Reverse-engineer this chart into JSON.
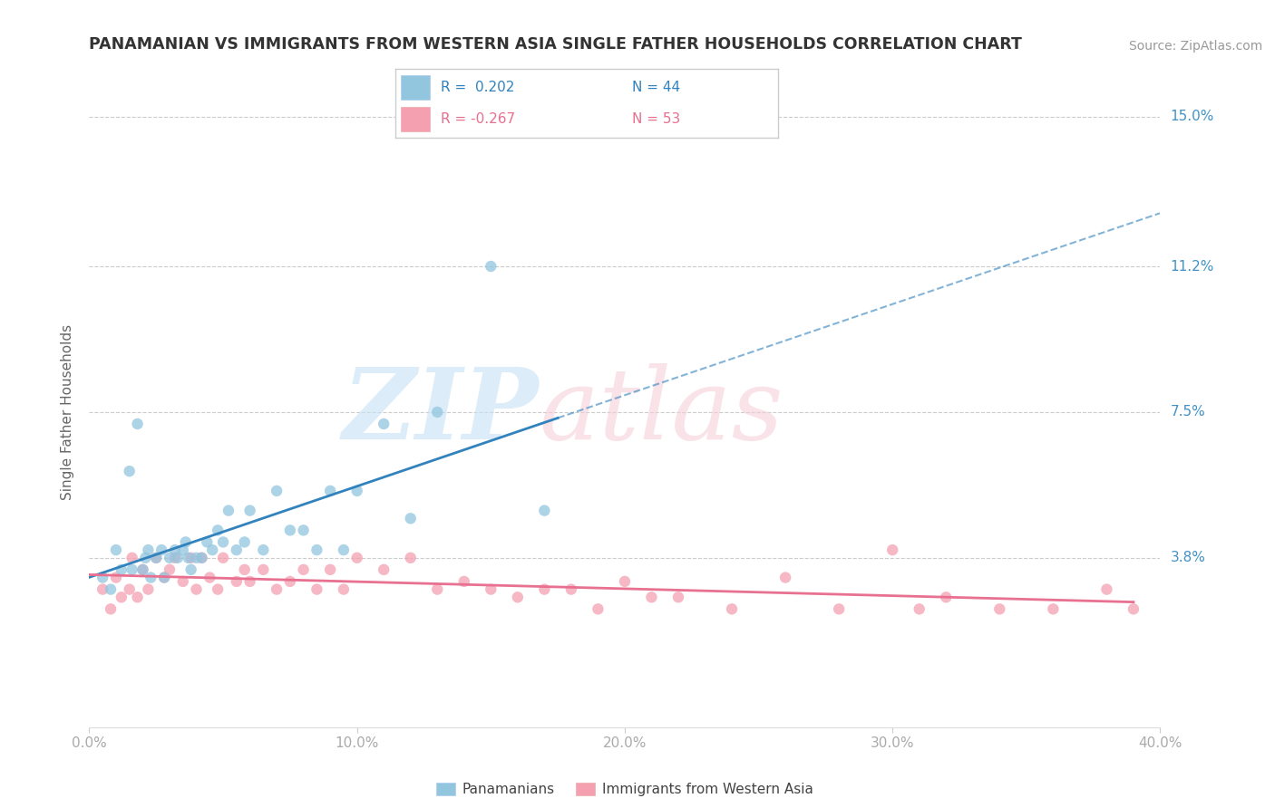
{
  "title": "PANAMANIAN VS IMMIGRANTS FROM WESTERN ASIA SINGLE FATHER HOUSEHOLDS CORRELATION CHART",
  "source": "Source: ZipAtlas.com",
  "ylabel": "Single Father Households",
  "xlim": [
    0.0,
    0.4
  ],
  "ylim": [
    -0.005,
    0.155
  ],
  "ytick_positions": [
    0.038,
    0.075,
    0.112,
    0.15
  ],
  "ytick_labels": [
    "3.8%",
    "7.5%",
    "11.2%",
    "15.0%"
  ],
  "xtick_positions": [
    0.0,
    0.1,
    0.2,
    0.3,
    0.4
  ],
  "xtick_labels": [
    "0.0%",
    "10.0%",
    "20.0%",
    "30.0%",
    "40.0%"
  ],
  "legend_r1": "R =  0.202",
  "legend_n1": "N = 44",
  "legend_r2": "R = -0.267",
  "legend_n2": "N = 53",
  "color_blue": "#92c5de",
  "color_pink": "#f4a0b0",
  "color_trendline_blue": "#3182bd",
  "color_trendline_pink": "#e87090",
  "color_ytick": "#4292c6",
  "color_xtick": "#aaaaaa",
  "blue_scatter_x": [
    0.005,
    0.008,
    0.01,
    0.012,
    0.015,
    0.016,
    0.018,
    0.02,
    0.021,
    0.022,
    0.023,
    0.025,
    0.027,
    0.028,
    0.03,
    0.032,
    0.033,
    0.035,
    0.036,
    0.037,
    0.038,
    0.04,
    0.042,
    0.044,
    0.046,
    0.048,
    0.05,
    0.052,
    0.055,
    0.058,
    0.06,
    0.065,
    0.07,
    0.075,
    0.08,
    0.085,
    0.09,
    0.095,
    0.1,
    0.11,
    0.12,
    0.13,
    0.15,
    0.17
  ],
  "blue_scatter_y": [
    0.033,
    0.03,
    0.04,
    0.035,
    0.06,
    0.035,
    0.072,
    0.035,
    0.038,
    0.04,
    0.033,
    0.038,
    0.04,
    0.033,
    0.038,
    0.04,
    0.038,
    0.04,
    0.042,
    0.038,
    0.035,
    0.038,
    0.038,
    0.042,
    0.04,
    0.045,
    0.042,
    0.05,
    0.04,
    0.042,
    0.05,
    0.04,
    0.055,
    0.045,
    0.045,
    0.04,
    0.055,
    0.04,
    0.055,
    0.072,
    0.048,
    0.075,
    0.112,
    0.05
  ],
  "pink_scatter_x": [
    0.005,
    0.008,
    0.01,
    0.012,
    0.015,
    0.016,
    0.018,
    0.02,
    0.022,
    0.025,
    0.028,
    0.03,
    0.032,
    0.035,
    0.038,
    0.04,
    0.042,
    0.045,
    0.048,
    0.05,
    0.055,
    0.058,
    0.06,
    0.065,
    0.07,
    0.075,
    0.08,
    0.085,
    0.09,
    0.095,
    0.1,
    0.11,
    0.12,
    0.13,
    0.14,
    0.15,
    0.16,
    0.17,
    0.18,
    0.19,
    0.2,
    0.21,
    0.22,
    0.24,
    0.26,
    0.28,
    0.3,
    0.31,
    0.32,
    0.34,
    0.36,
    0.38,
    0.39
  ],
  "pink_scatter_y": [
    0.03,
    0.025,
    0.033,
    0.028,
    0.03,
    0.038,
    0.028,
    0.035,
    0.03,
    0.038,
    0.033,
    0.035,
    0.038,
    0.032,
    0.038,
    0.03,
    0.038,
    0.033,
    0.03,
    0.038,
    0.032,
    0.035,
    0.032,
    0.035,
    0.03,
    0.032,
    0.035,
    0.03,
    0.035,
    0.03,
    0.038,
    0.035,
    0.038,
    0.03,
    0.032,
    0.03,
    0.028,
    0.03,
    0.03,
    0.025,
    0.032,
    0.028,
    0.028,
    0.025,
    0.033,
    0.025,
    0.04,
    0.025,
    0.028,
    0.025,
    0.025,
    0.03,
    0.025
  ]
}
